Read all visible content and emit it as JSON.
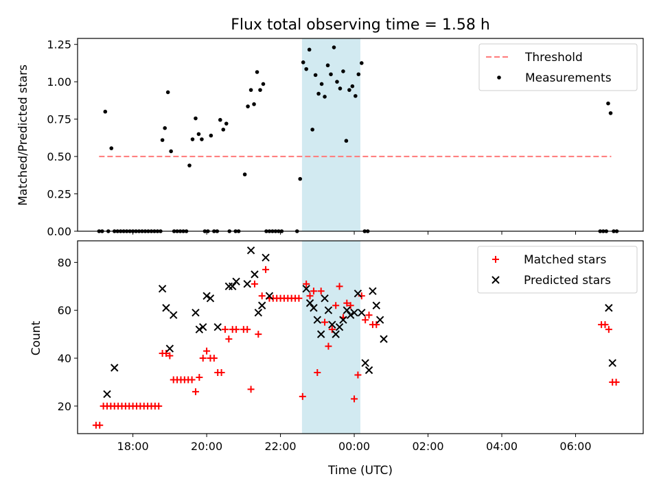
{
  "chart_data": [
    {
      "type": "scatter",
      "title": "Flux total observing time = 1.58 h",
      "xlabel": "",
      "ylabel": "Matched/Predicted stars",
      "xlim": [
        "16:30",
        "07:50 (+1 day)"
      ],
      "ylim": [
        0,
        1.29
      ],
      "yticks": [
        "0.00",
        "0.25",
        "0.50",
        "0.75",
        "1.00",
        "1.25"
      ],
      "shaded_span": {
        "start": "22:35",
        "end": "00:10 (+1 day)",
        "color": "#add8e6"
      },
      "legend": {
        "position": "top-right",
        "entries": [
          "Threshold",
          "Measurements"
        ]
      },
      "grid": false,
      "series": [
        {
          "name": "Threshold",
          "style": "dashed-line",
          "color": "#ff8080",
          "points": [
            [
              "17:05",
              0.5
            ],
            [
              "06:58 (+1 day)",
              0.5
            ]
          ]
        },
        {
          "name": "Measurements",
          "style": "dots",
          "color": "#000000",
          "points": [
            [
              "17:05",
              0
            ],
            [
              "17:10",
              0
            ],
            [
              "17:15",
              0.8
            ],
            [
              "17:20",
              0
            ],
            [
              "17:25",
              0.555
            ],
            [
              "17:30",
              0
            ],
            [
              "17:35",
              0
            ],
            [
              "17:40",
              0
            ],
            [
              "17:45",
              0
            ],
            [
              "17:50",
              0
            ],
            [
              "17:55",
              0
            ],
            [
              "18:00",
              0
            ],
            [
              "18:05",
              0
            ],
            [
              "18:10",
              0
            ],
            [
              "18:15",
              0
            ],
            [
              "18:20",
              0
            ],
            [
              "18:25",
              0
            ],
            [
              "18:30",
              0
            ],
            [
              "18:35",
              0
            ],
            [
              "18:40",
              0
            ],
            [
              "18:45",
              0
            ],
            [
              "18:48",
              0.61
            ],
            [
              "18:52",
              0.69
            ],
            [
              "18:57",
              0.93
            ],
            [
              "19:02",
              0.535
            ],
            [
              "19:07",
              0
            ],
            [
              "19:12",
              0
            ],
            [
              "19:17",
              0
            ],
            [
              "19:22",
              0
            ],
            [
              "19:27",
              0
            ],
            [
              "19:32",
              0.44
            ],
            [
              "19:37",
              0.615
            ],
            [
              "19:42",
              0.755
            ],
            [
              "19:47",
              0.65
            ],
            [
              "19:52",
              0.615
            ],
            [
              "19:57",
              0
            ],
            [
              "20:02",
              0
            ],
            [
              "20:07",
              0.64
            ],
            [
              "20:12",
              0
            ],
            [
              "20:17",
              0
            ],
            [
              "20:22",
              0.745
            ],
            [
              "20:27",
              0.68
            ],
            [
              "20:32",
              0.72
            ],
            [
              "20:37",
              0
            ],
            [
              "20:47",
              0
            ],
            [
              "20:52",
              0
            ],
            [
              "21:02",
              0.38
            ],
            [
              "21:07",
              0.835
            ],
            [
              "21:12",
              0.945
            ],
            [
              "21:17",
              0.85
            ],
            [
              "21:22",
              1.065
            ],
            [
              "21:27",
              0.945
            ],
            [
              "21:32",
              0.985
            ],
            [
              "21:37",
              0
            ],
            [
              "21:42",
              0
            ],
            [
              "21:47",
              0
            ],
            [
              "21:52",
              0
            ],
            [
              "21:57",
              0
            ],
            [
              "22:02",
              0
            ],
            [
              "22:27",
              0
            ],
            [
              "22:32",
              0.35
            ],
            [
              "22:37",
              1.13
            ],
            [
              "22:42",
              1.085
            ],
            [
              "22:47",
              1.215
            ],
            [
              "22:52",
              0.68
            ],
            [
              "22:57",
              1.045
            ],
            [
              "23:02",
              0.92
            ],
            [
              "23:07",
              0.985
            ],
            [
              "23:12",
              0.9
            ],
            [
              "23:17",
              1.11
            ],
            [
              "23:22",
              1.05
            ],
            [
              "23:27",
              1.23
            ],
            [
              "23:32",
              1.0
            ],
            [
              "23:37",
              0.955
            ],
            [
              "23:42",
              1.07
            ],
            [
              "23:47",
              0.605
            ],
            [
              "23:52",
              0.945
            ],
            [
              "23:57",
              0.97
            ],
            [
              "00:02",
              0.905
            ],
            [
              "00:07",
              1.05
            ],
            [
              "00:12",
              1.125
            ],
            [
              "00:17",
              0
            ],
            [
              "00:22",
              0
            ],
            [
              "06:40",
              0
            ],
            [
              "06:45",
              0
            ],
            [
              "06:50",
              0
            ],
            [
              "06:53",
              0.855
            ],
            [
              "06:57",
              0.79
            ],
            [
              "07:02",
              0
            ],
            [
              "07:07",
              0
            ]
          ]
        }
      ]
    },
    {
      "type": "scatter",
      "title": "",
      "xlabel": "Time (UTC)",
      "ylabel": "Count",
      "xlim": [
        "16:30",
        "07:50 (+1 day)"
      ],
      "ylim": [
        8.5,
        89
      ],
      "yticks": [
        "20",
        "40",
        "60",
        "80"
      ],
      "xticks": [
        "18:00",
        "20:00",
        "22:00",
        "00:00",
        "02:00",
        "04:00",
        "06:00"
      ],
      "shaded_span": {
        "start": "22:35",
        "end": "00:10 (+1 day)",
        "color": "#add8e6"
      },
      "legend": {
        "position": "top-right",
        "entries": [
          "Matched stars",
          "Predicted stars"
        ]
      },
      "grid": false,
      "series": [
        {
          "name": "Matched stars",
          "marker": "+",
          "color": "#ff0000",
          "points": [
            [
              "17:00",
              12
            ],
            [
              "17:06",
              12
            ],
            [
              "17:12",
              20
            ],
            [
              "17:18",
              20
            ],
            [
              "17:24",
              20
            ],
            [
              "17:30",
              20
            ],
            [
              "17:36",
              20
            ],
            [
              "17:42",
              20
            ],
            [
              "17:48",
              20
            ],
            [
              "17:54",
              20
            ],
            [
              "18:00",
              20
            ],
            [
              "18:06",
              20
            ],
            [
              "18:12",
              20
            ],
            [
              "18:18",
              20
            ],
            [
              "18:24",
              20
            ],
            [
              "18:30",
              20
            ],
            [
              "18:36",
              20
            ],
            [
              "18:42",
              20
            ],
            [
              "18:48",
              42
            ],
            [
              "18:54",
              42
            ],
            [
              "19:00",
              41
            ],
            [
              "19:06",
              31
            ],
            [
              "19:12",
              31
            ],
            [
              "19:18",
              31
            ],
            [
              "19:24",
              31
            ],
            [
              "19:30",
              31
            ],
            [
              "19:36",
              31
            ],
            [
              "19:42",
              26
            ],
            [
              "19:48",
              32
            ],
            [
              "19:54",
              40
            ],
            [
              "20:00",
              43
            ],
            [
              "20:06",
              40
            ],
            [
              "20:12",
              40
            ],
            [
              "20:18",
              34
            ],
            [
              "20:24",
              34
            ],
            [
              "20:30",
              52
            ],
            [
              "20:36",
              48
            ],
            [
              "20:42",
              52
            ],
            [
              "20:48",
              52
            ],
            [
              "21:00",
              52
            ],
            [
              "21:06",
              52
            ],
            [
              "21:12",
              27
            ],
            [
              "21:18",
              71
            ],
            [
              "21:24",
              50
            ],
            [
              "21:30",
              66
            ],
            [
              "21:36",
              77
            ],
            [
              "21:42",
              65
            ],
            [
              "21:48",
              65
            ],
            [
              "21:54",
              65
            ],
            [
              "22:00",
              65
            ],
            [
              "22:06",
              65
            ],
            [
              "22:12",
              65
            ],
            [
              "22:18",
              65
            ],
            [
              "22:24",
              65
            ],
            [
              "22:30",
              65
            ],
            [
              "22:36",
              24
            ],
            [
              "22:42",
              71
            ],
            [
              "22:48",
              66
            ],
            [
              "22:54",
              68
            ],
            [
              "23:00",
              34
            ],
            [
              "23:06",
              68
            ],
            [
              "23:12",
              55
            ],
            [
              "23:18",
              45
            ],
            [
              "23:24",
              52
            ],
            [
              "23:30",
              62
            ],
            [
              "23:36",
              70
            ],
            [
              "23:42",
              57
            ],
            [
              "23:48",
              63
            ],
            [
              "23:54",
              62
            ],
            [
              "00:00",
              23
            ],
            [
              "00:06",
              33
            ],
            [
              "00:12",
              66
            ],
            [
              "00:18",
              56
            ],
            [
              "00:24",
              58
            ],
            [
              "00:30",
              54
            ],
            [
              "00:36",
              54
            ],
            [
              "06:42",
              54
            ],
            [
              "06:48",
              54
            ],
            [
              "06:54",
              52
            ],
            [
              "07:00",
              30
            ],
            [
              "07:06",
              30
            ]
          ]
        },
        {
          "name": "Predicted stars",
          "marker": "x",
          "color": "#000000",
          "points": [
            [
              "17:18",
              25
            ],
            [
              "17:30",
              36
            ],
            [
              "18:48",
              69
            ],
            [
              "18:54",
              61
            ],
            [
              "19:00",
              44
            ],
            [
              "19:06",
              58
            ],
            [
              "19:42",
              59
            ],
            [
              "19:48",
              52
            ],
            [
              "19:54",
              53
            ],
            [
              "20:00",
              66
            ],
            [
              "20:06",
              65
            ],
            [
              "20:18",
              53
            ],
            [
              "20:36",
              70
            ],
            [
              "20:42",
              70
            ],
            [
              "20:48",
              72
            ],
            [
              "21:06",
              71
            ],
            [
              "21:12",
              85
            ],
            [
              "21:18",
              75
            ],
            [
              "21:24",
              59
            ],
            [
              "21:30",
              62
            ],
            [
              "21:36",
              82
            ],
            [
              "21:42",
              66
            ],
            [
              "22:42",
              69
            ],
            [
              "22:48",
              63
            ],
            [
              "22:54",
              61
            ],
            [
              "23:00",
              56
            ],
            [
              "23:06",
              50
            ],
            [
              "23:12",
              65
            ],
            [
              "23:18",
              60
            ],
            [
              "23:24",
              54
            ],
            [
              "23:30",
              50
            ],
            [
              "23:36",
              53
            ],
            [
              "23:42",
              56
            ],
            [
              "23:48",
              60
            ],
            [
              "23:54",
              58
            ],
            [
              "00:00",
              59
            ],
            [
              "00:06",
              67
            ],
            [
              "00:12",
              59
            ],
            [
              "00:18",
              38
            ],
            [
              "00:24",
              35
            ],
            [
              "00:30",
              68
            ],
            [
              "00:36",
              62
            ],
            [
              "00:42",
              56
            ],
            [
              "00:48",
              48
            ],
            [
              "06:54",
              61
            ],
            [
              "07:00",
              38
            ]
          ]
        }
      ]
    }
  ]
}
